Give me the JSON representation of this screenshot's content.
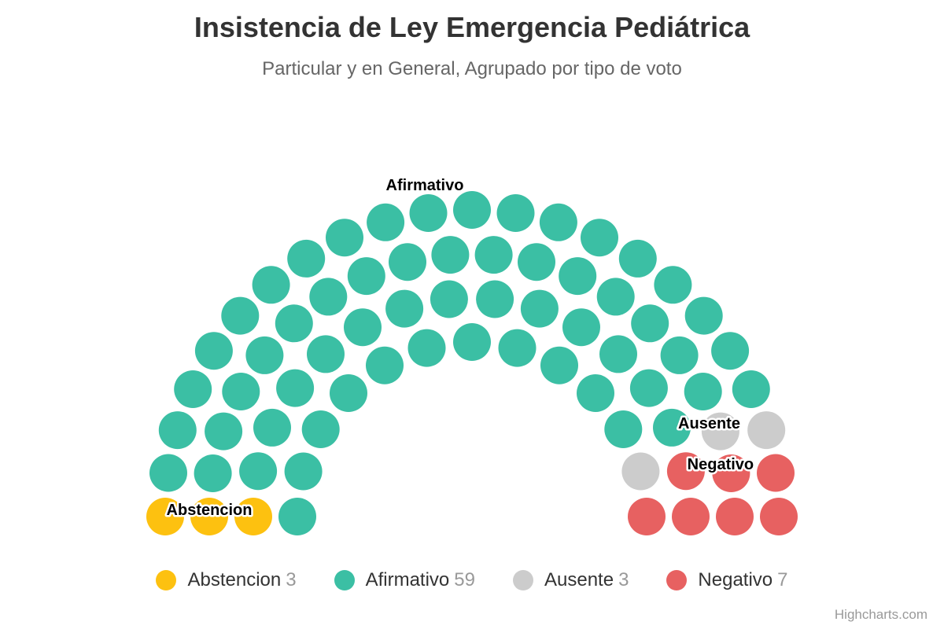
{
  "title": "Insistencia de Ley Emergencia Pediátrica",
  "subtitle": "Particular y en General, Agrupado por tipo de voto",
  "credits": "Highcharts.com",
  "chart_data": {
    "type": "item",
    "title": "Insistencia de Ley Emergencia Pediátrica",
    "subtitle": "Particular y en General, Agrupado por tipo de voto",
    "series": [
      {
        "name": "Abstencion",
        "value": 3,
        "color": "#FDC110"
      },
      {
        "name": "Afirmativo",
        "value": 59,
        "color": "#3BBFA4"
      },
      {
        "name": "Ausente",
        "value": 3,
        "color": "#CCCCCC"
      },
      {
        "name": "Negativo",
        "value": 7,
        "color": "#E76161"
      }
    ],
    "legend_position": "bottom-center"
  }
}
